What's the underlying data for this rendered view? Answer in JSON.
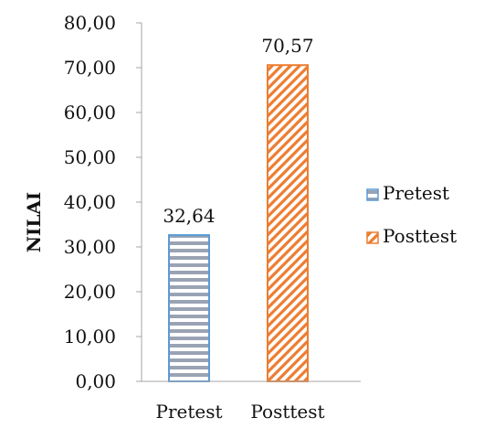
{
  "chart_data": {
    "type": "bar",
    "categories": [
      "Pretest",
      "Posttest"
    ],
    "values": [
      32.64,
      70.57
    ],
    "data_labels": [
      "32,64",
      "70,57"
    ],
    "ylim": [
      0,
      80
    ],
    "y_ticks": [
      0,
      10,
      20,
      30,
      40,
      50,
      60,
      70,
      80
    ],
    "y_tick_labels": [
      "0,00",
      "10,00",
      "20,00",
      "30,00",
      "40,00",
      "50,00",
      "60,00",
      "70,00",
      "80,00"
    ],
    "xlabel": "",
    "ylabel": "NILAI",
    "grid": false,
    "legend": {
      "placement": "right",
      "entries": [
        "Pretest",
        "Posttest"
      ]
    },
    "series_colors": [
      "#5b9bd5",
      "#ed7d31"
    ],
    "series_patterns": [
      "horizontal-stripes",
      "diagonal-stripes"
    ]
  }
}
